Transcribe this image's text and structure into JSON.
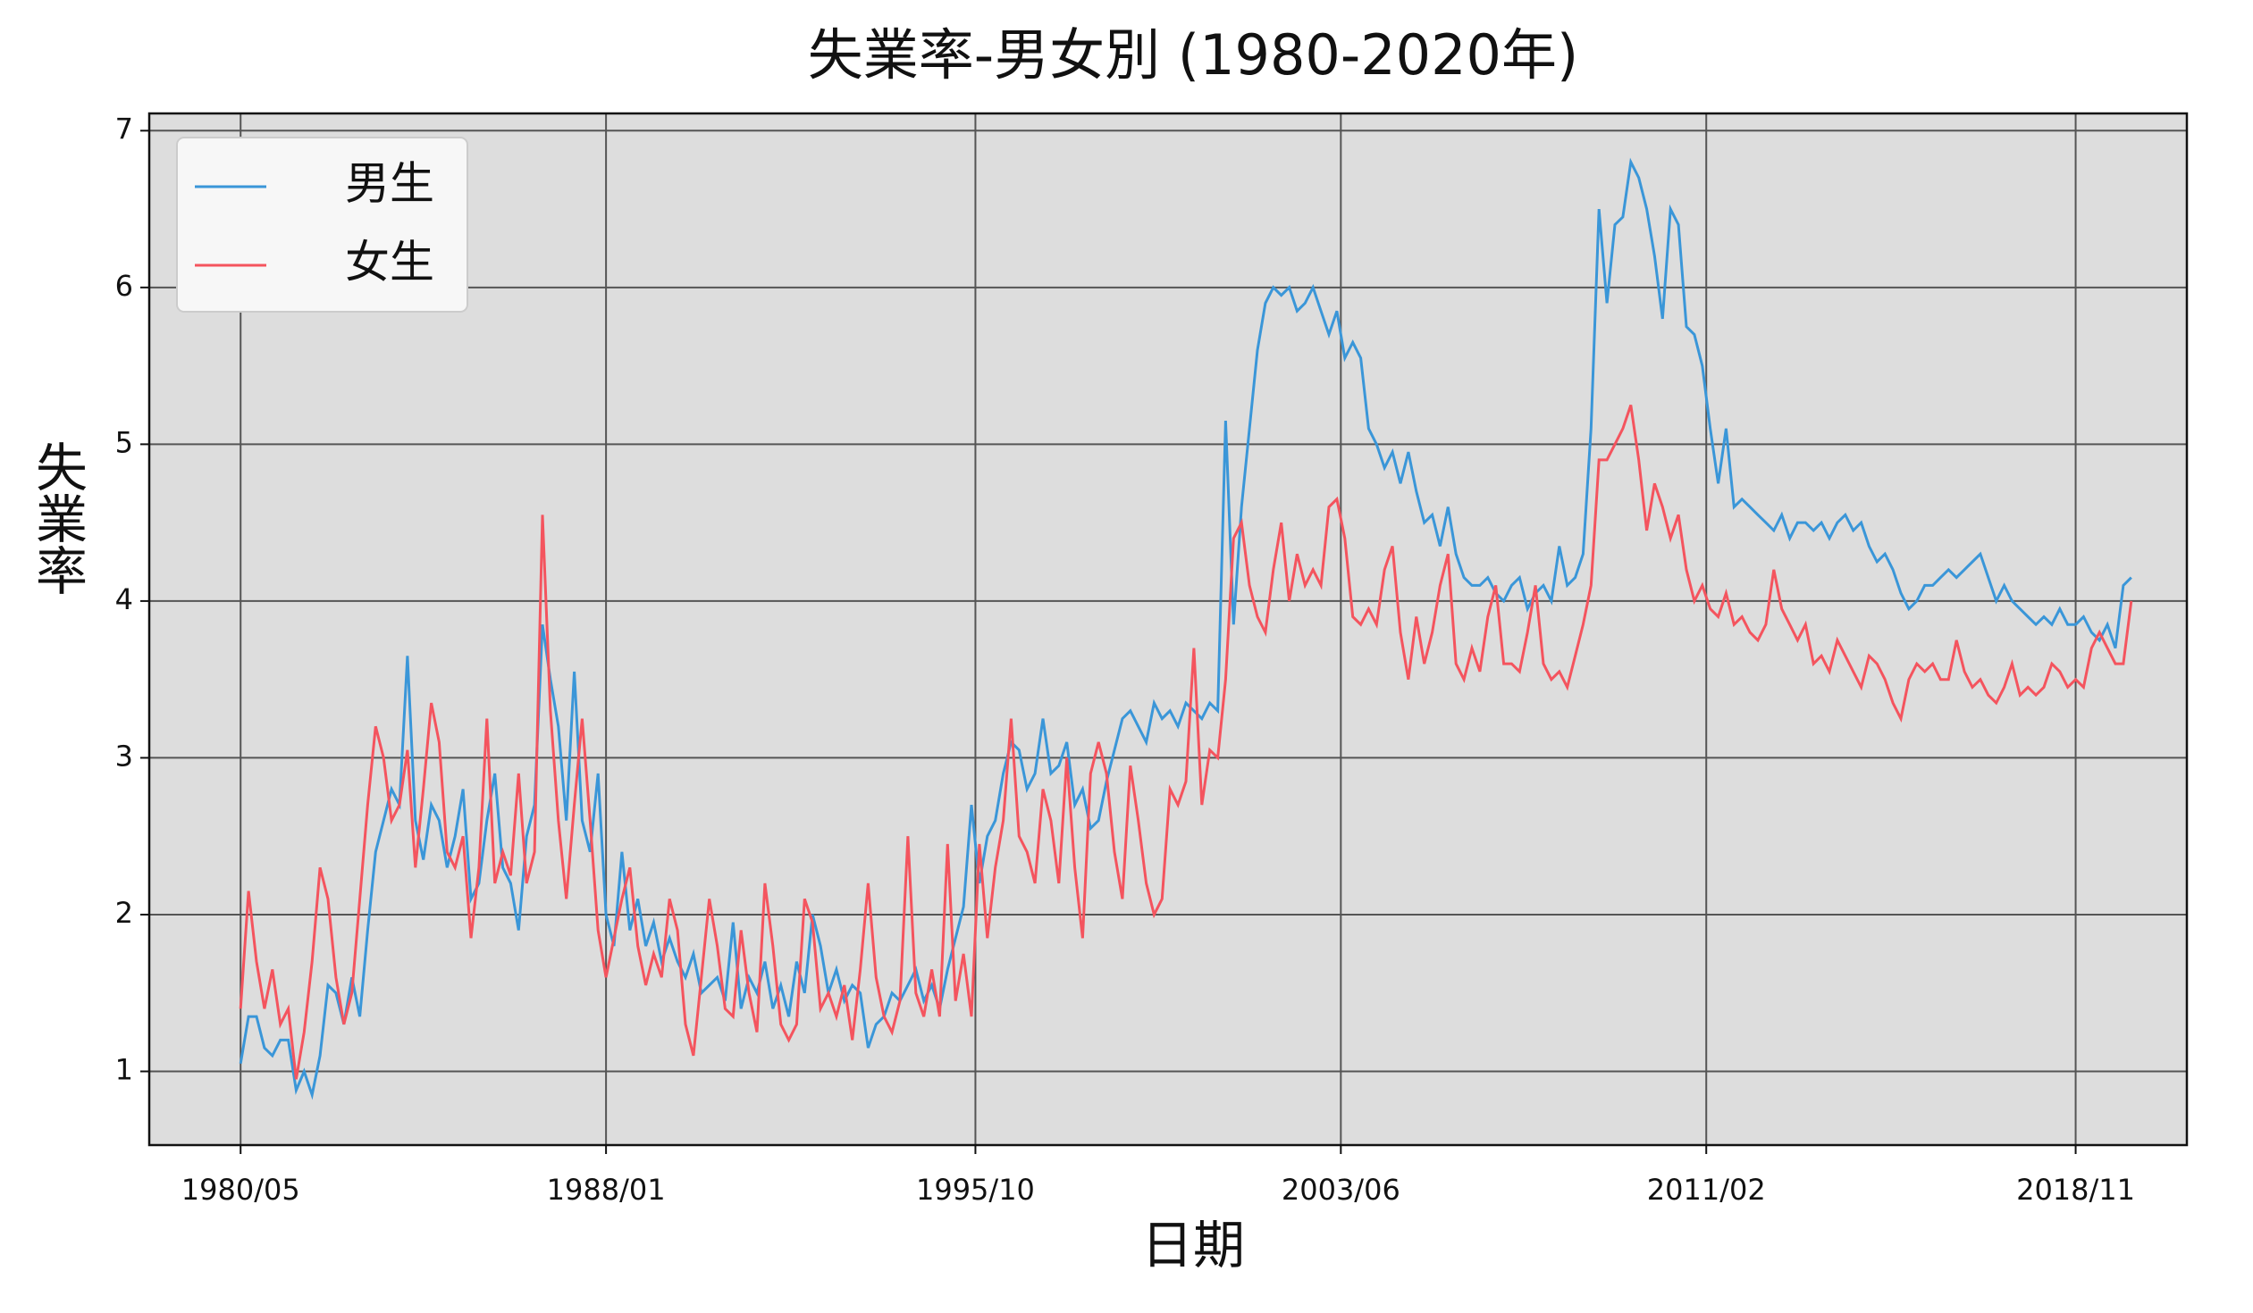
{
  "chart_data": {
    "type": "line",
    "title": "失業率-男女別 (1980-2020年)",
    "x_label": "日期",
    "y_label": "失業率",
    "x": [
      "1980/05",
      "1980/07",
      "1980/09",
      "1980/11",
      "1981/01",
      "1981/03",
      "1981/05",
      "1981/07",
      "1981/09",
      "1981/11",
      "1982/01",
      "1982/03",
      "1982/05",
      "1982/07",
      "1982/09",
      "1982/11",
      "1983/01",
      "1983/03",
      "1983/05",
      "1983/07",
      "1983/09",
      "1983/11",
      "1984/01",
      "1984/03",
      "1984/05",
      "1984/07",
      "1984/09",
      "1984/11",
      "1985/01",
      "1985/03",
      "1985/05",
      "1985/07",
      "1985/09",
      "1985/11",
      "1986/01",
      "1986/03",
      "1986/05",
      "1986/07",
      "1986/09",
      "1986/11",
      "1987/01",
      "1987/03",
      "1987/05",
      "1987/07",
      "1987/09",
      "1987/11",
      "1988/01",
      "1988/03",
      "1988/05",
      "1988/07",
      "1988/09",
      "1988/11",
      "1989/01",
      "1989/03",
      "1989/05",
      "1989/07",
      "1989/09",
      "1989/11",
      "1990/01",
      "1990/03",
      "1990/05",
      "1990/07",
      "1990/09",
      "1990/11",
      "1991/01",
      "1991/03",
      "1991/05",
      "1991/07",
      "1991/09",
      "1991/11",
      "1992/01",
      "1992/03",
      "1992/05",
      "1992/07",
      "1992/09",
      "1992/11",
      "1993/01",
      "1993/03",
      "1993/05",
      "1993/07",
      "1993/09",
      "1993/11",
      "1994/01",
      "1994/03",
      "1994/05",
      "1994/07",
      "1994/09",
      "1994/11",
      "1995/01",
      "1995/03",
      "1995/05",
      "1995/07",
      "1995/09",
      "1995/11",
      "1996/01",
      "1996/03",
      "1996/05",
      "1996/07",
      "1996/09",
      "1996/11",
      "1997/01",
      "1997/03",
      "1997/05",
      "1997/07",
      "1997/09",
      "1997/11",
      "1998/01",
      "1998/03",
      "1998/05",
      "1998/07",
      "1998/09",
      "1998/11",
      "1999/01",
      "1999/03",
      "1999/05",
      "1999/07",
      "1999/09",
      "1999/11",
      "2000/01",
      "2000/03",
      "2000/05",
      "2000/07",
      "2000/09",
      "2000/11",
      "2001/01",
      "2001/03",
      "2001/05",
      "2001/07",
      "2001/09",
      "2001/11",
      "2002/01",
      "2002/03",
      "2002/05",
      "2002/07",
      "2002/09",
      "2002/11",
      "2003/01",
      "2003/03",
      "2003/05",
      "2003/07",
      "2003/09",
      "2003/11",
      "2004/01",
      "2004/03",
      "2004/05",
      "2004/07",
      "2004/09",
      "2004/11",
      "2005/01",
      "2005/03",
      "2005/05",
      "2005/07",
      "2005/09",
      "2005/11",
      "2006/01",
      "2006/03",
      "2006/05",
      "2006/07",
      "2006/09",
      "2006/11",
      "2007/01",
      "2007/03",
      "2007/05",
      "2007/07",
      "2007/09",
      "2007/11",
      "2008/01",
      "2008/03",
      "2008/05",
      "2008/07",
      "2008/09",
      "2008/11",
      "2009/01",
      "2009/03",
      "2009/05",
      "2009/07",
      "2009/09",
      "2009/11",
      "2010/01",
      "2010/03",
      "2010/05",
      "2010/07",
      "2010/09",
      "2010/11",
      "2011/01",
      "2011/03",
      "2011/05",
      "2011/07",
      "2011/09",
      "2011/11",
      "2012/01",
      "2012/03",
      "2012/05",
      "2012/07",
      "2012/09",
      "2012/11",
      "2013/01",
      "2013/03",
      "2013/05",
      "2013/07",
      "2013/09",
      "2013/11",
      "2014/01",
      "2014/03",
      "2014/05",
      "2014/07",
      "2014/09",
      "2014/11",
      "2015/01",
      "2015/03",
      "2015/05",
      "2015/07",
      "2015/09",
      "2015/11",
      "2016/01",
      "2016/03",
      "2016/05",
      "2016/07",
      "2016/09",
      "2016/11",
      "2017/01",
      "2017/03",
      "2017/05",
      "2017/07",
      "2017/09",
      "2017/11",
      "2018/01",
      "2018/03",
      "2018/05",
      "2018/07",
      "2018/09",
      "2018/11",
      "2019/01",
      "2019/03",
      "2019/05",
      "2019/07",
      "2019/09",
      "2019/11",
      "2020/01"
    ],
    "series": [
      {
        "name": "男生",
        "color": "#3a96d8",
        "values": [
          1.05,
          1.35,
          1.35,
          1.15,
          1.1,
          1.2,
          1.2,
          0.88,
          1.0,
          0.85,
          1.1,
          1.55,
          1.5,
          1.3,
          1.6,
          1.35,
          1.9,
          2.4,
          2.6,
          2.8,
          2.7,
          3.65,
          2.6,
          2.35,
          2.7,
          2.6,
          2.3,
          2.5,
          2.8,
          2.1,
          2.2,
          2.6,
          2.9,
          2.3,
          2.2,
          1.9,
          2.5,
          2.7,
          3.85,
          3.5,
          3.2,
          2.6,
          3.55,
          2.6,
          2.4,
          2.9,
          2.0,
          1.8,
          2.4,
          1.9,
          2.1,
          1.8,
          1.95,
          1.7,
          1.85,
          1.7,
          1.6,
          1.75,
          1.5,
          1.55,
          1.6,
          1.45,
          1.95,
          1.4,
          1.6,
          1.5,
          1.7,
          1.4,
          1.55,
          1.35,
          1.7,
          1.5,
          2.0,
          1.8,
          1.5,
          1.65,
          1.45,
          1.55,
          1.5,
          1.15,
          1.3,
          1.35,
          1.5,
          1.45,
          1.55,
          1.65,
          1.45,
          1.55,
          1.4,
          1.65,
          1.85,
          2.05,
          2.7,
          2.2,
          2.5,
          2.6,
          2.9,
          3.1,
          3.05,
          2.8,
          2.9,
          3.25,
          2.9,
          2.95,
          3.1,
          2.7,
          2.8,
          2.55,
          2.6,
          2.85,
          3.05,
          3.25,
          3.3,
          3.2,
          3.1,
          3.35,
          3.25,
          3.3,
          3.2,
          3.35,
          3.3,
          3.25,
          3.35,
          3.3,
          5.15,
          3.85,
          4.6,
          5.1,
          5.6,
          5.9,
          6.0,
          5.95,
          6.0,
          5.85,
          5.9,
          6.0,
          5.85,
          5.7,
          5.85,
          5.55,
          5.65,
          5.55,
          5.1,
          5.0,
          4.85,
          4.95,
          4.75,
          4.95,
          4.7,
          4.5,
          4.55,
          4.35,
          4.6,
          4.3,
          4.15,
          4.1,
          4.1,
          4.15,
          4.05,
          4.0,
          4.1,
          4.15,
          3.95,
          4.05,
          4.1,
          4.0,
          4.35,
          4.1,
          4.15,
          4.3,
          5.1,
          6.5,
          5.9,
          6.4,
          6.45,
          6.8,
          6.7,
          6.5,
          6.2,
          5.8,
          6.5,
          6.4,
          5.75,
          5.7,
          5.5,
          5.1,
          4.75,
          5.1,
          4.6,
          4.65,
          4.6,
          4.55,
          4.5,
          4.45,
          4.55,
          4.4,
          4.5,
          4.5,
          4.45,
          4.5,
          4.4,
          4.5,
          4.55,
          4.45,
          4.5,
          4.35,
          4.25,
          4.3,
          4.2,
          4.05,
          3.95,
          4.0,
          4.1,
          4.1,
          4.15,
          4.2,
          4.15,
          4.2,
          4.25,
          4.3,
          4.15,
          4.0,
          4.1,
          4.0,
          3.95,
          3.9,
          3.85,
          3.9,
          3.85,
          3.95,
          3.85,
          3.85,
          3.9,
          3.8,
          3.75,
          3.85,
          3.7,
          4.1,
          4.15
        ]
      },
      {
        "name": "女生",
        "color": "#f4545e",
        "values": [
          1.4,
          2.15,
          1.7,
          1.4,
          1.65,
          1.3,
          1.4,
          0.95,
          1.25,
          1.7,
          2.3,
          2.1,
          1.6,
          1.3,
          1.5,
          2.1,
          2.7,
          3.2,
          3.0,
          2.6,
          2.7,
          3.05,
          2.3,
          2.8,
          3.35,
          3.1,
          2.4,
          2.3,
          2.5,
          1.85,
          2.3,
          3.25,
          2.2,
          2.4,
          2.25,
          2.9,
          2.2,
          2.4,
          4.55,
          3.3,
          2.6,
          2.1,
          2.7,
          3.25,
          2.6,
          1.9,
          1.6,
          1.85,
          2.1,
          2.3,
          1.8,
          1.55,
          1.75,
          1.6,
          2.1,
          1.9,
          1.3,
          1.1,
          1.6,
          2.1,
          1.8,
          1.4,
          1.35,
          1.9,
          1.5,
          1.25,
          2.2,
          1.8,
          1.3,
          1.2,
          1.3,
          2.1,
          1.95,
          1.4,
          1.5,
          1.35,
          1.55,
          1.2,
          1.65,
          2.2,
          1.6,
          1.35,
          1.25,
          1.45,
          2.5,
          1.5,
          1.35,
          1.65,
          1.35,
          2.45,
          1.45,
          1.75,
          1.35,
          2.45,
          1.85,
          2.3,
          2.6,
          3.25,
          2.5,
          2.4,
          2.2,
          2.8,
          2.6,
          2.2,
          3.0,
          2.3,
          1.85,
          2.9,
          3.1,
          2.9,
          2.4,
          2.1,
          2.95,
          2.6,
          2.2,
          2.0,
          2.1,
          2.8,
          2.7,
          2.85,
          3.7,
          2.7,
          3.05,
          3.0,
          3.5,
          4.4,
          4.5,
          4.1,
          3.9,
          3.8,
          4.2,
          4.5,
          4.0,
          4.3,
          4.1,
          4.2,
          4.1,
          4.6,
          4.65,
          4.4,
          3.9,
          3.85,
          3.95,
          3.85,
          4.2,
          4.35,
          3.8,
          3.5,
          3.9,
          3.6,
          3.8,
          4.1,
          4.3,
          3.6,
          3.5,
          3.7,
          3.55,
          3.9,
          4.1,
          3.6,
          3.6,
          3.55,
          3.8,
          4.1,
          3.6,
          3.5,
          3.55,
          3.45,
          3.65,
          3.85,
          4.1,
          4.9,
          4.9,
          5.0,
          5.1,
          5.25,
          4.9,
          4.45,
          4.75,
          4.6,
          4.4,
          4.55,
          4.2,
          4.0,
          4.1,
          3.95,
          3.9,
          4.05,
          3.85,
          3.9,
          3.8,
          3.75,
          3.85,
          4.2,
          3.95,
          3.85,
          3.75,
          3.85,
          3.6,
          3.65,
          3.55,
          3.75,
          3.65,
          3.55,
          3.45,
          3.65,
          3.6,
          3.5,
          3.35,
          3.25,
          3.5,
          3.6,
          3.55,
          3.6,
          3.5,
          3.5,
          3.75,
          3.55,
          3.45,
          3.5,
          3.4,
          3.35,
          3.45,
          3.6,
          3.4,
          3.45,
          3.4,
          3.45,
          3.6,
          3.55,
          3.45,
          3.5,
          3.45,
          3.7,
          3.8,
          3.7,
          3.6,
          3.6,
          4.0
        ]
      }
    ],
    "xlim": [
      "1978/06",
      "2021/03"
    ],
    "xticks": [
      "1980/05",
      "1988/01",
      "1995/10",
      "2003/06",
      "2011/02",
      "2018/11"
    ],
    "ylim": [
      0.53,
      7.11
    ],
    "yticks": [
      1,
      2,
      3,
      4,
      5,
      6,
      7
    ],
    "grid": true,
    "legend": "upper left",
    "y_label_color": "#e00000",
    "plot_background": "#dddddd"
  }
}
